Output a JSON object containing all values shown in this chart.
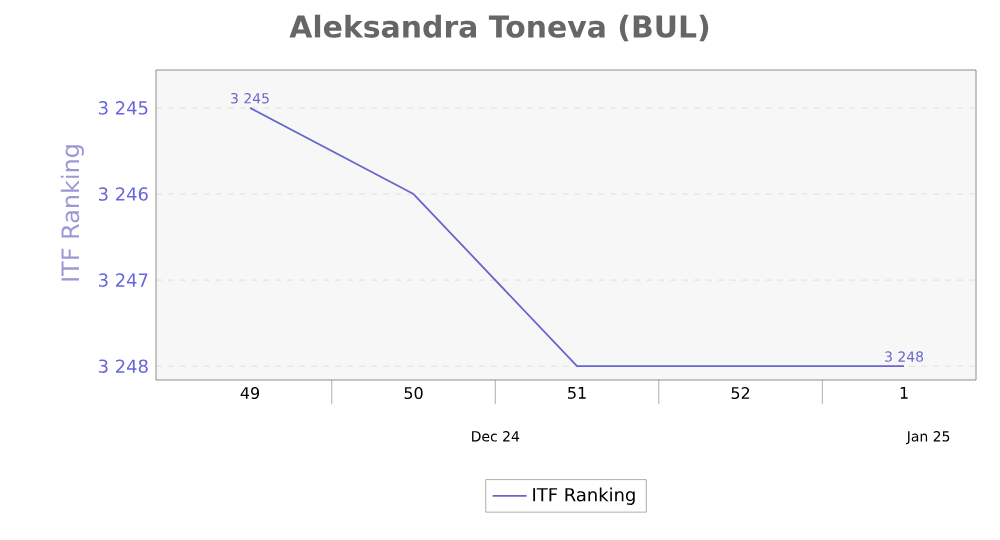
{
  "chart_data": {
    "type": "line",
    "title": "Aleksandra Toneva (BUL)",
    "ylabel": "ITF Ranking",
    "categories": [
      "49",
      "50",
      "51",
      "52",
      "1"
    ],
    "series": [
      {
        "name": "ITF Ranking",
        "color": "#6666cc",
        "values": [
          3245,
          3246,
          3248,
          3248,
          3248
        ],
        "value_labels": [
          "3 245",
          null,
          null,
          null,
          "3 248"
        ]
      }
    ],
    "ylim": [
      3248.16,
      3244.56
    ],
    "yticks": [
      {
        "value": 3245,
        "label": "3 245"
      },
      {
        "value": 3246,
        "label": "3 246"
      },
      {
        "value": 3247,
        "label": "3 247"
      },
      {
        "value": 3248,
        "label": "3 248"
      }
    ],
    "grid": "y",
    "legend": "bottom",
    "marker": "none",
    "line_style": "solid",
    "annotations": [
      "Dec 24",
      "Jan 25"
    ]
  }
}
